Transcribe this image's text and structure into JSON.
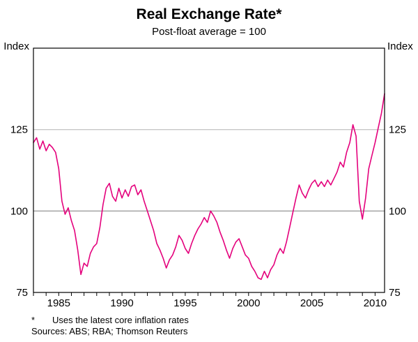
{
  "title": "Real Exchange Rate*",
  "subtitle": "Post-float average = 100",
  "axis": {
    "left_unit": "Index",
    "right_unit": "Index"
  },
  "footnotes": {
    "asterisk": "*",
    "note": "Uses the latest core inflation rates",
    "sources": "Sources: ABS; RBA; Thomson Reuters"
  },
  "chart_data": {
    "type": "line",
    "title": "Real Exchange Rate*",
    "subtitle": "Post-float average = 100",
    "ylabel": "Index",
    "ylim": [
      75,
      150
    ],
    "yticks": [
      75,
      100,
      125
    ],
    "gridlines": [
      {
        "value": 100,
        "color": "#7a7a7a"
      },
      {
        "value": 125,
        "color": "#b3b3b3"
      }
    ],
    "xlim": [
      1983,
      2010.75
    ],
    "xticks": [
      1985,
      1990,
      1995,
      2000,
      2005,
      2010
    ],
    "minor_tick_interval": 1,
    "line_color": "#e4007c",
    "frame_color": "#000000",
    "legend": "none",
    "series": [
      {
        "name": "Real exchange rate (post-float average = 100)",
        "x_start": 1983,
        "x_step": 0.25,
        "values": [
          121,
          122.5,
          119,
          121.5,
          118.5,
          120.5,
          119.5,
          118,
          113,
          103,
          99,
          101,
          97,
          94,
          88,
          80.5,
          84,
          83,
          87,
          89,
          90,
          95,
          102,
          107,
          108.5,
          104.5,
          103,
          107,
          104,
          106.5,
          104.5,
          107.5,
          108,
          105,
          106.5,
          103,
          100,
          97,
          94,
          90,
          88,
          85.5,
          82.5,
          85,
          86.5,
          89,
          92.5,
          91,
          88.5,
          87,
          90,
          92.5,
          94.5,
          96,
          98,
          96.5,
          100,
          98.5,
          96.5,
          93.5,
          91,
          88,
          85.5,
          88.5,
          90.5,
          91.5,
          89,
          86.5,
          85.5,
          83,
          81.5,
          79.5,
          79,
          81.5,
          79.5,
          82,
          83.5,
          86.5,
          88.5,
          87,
          90.5,
          95,
          99.5,
          104,
          108,
          105.5,
          104,
          106.5,
          108.5,
          109.5,
          107.5,
          109,
          107.5,
          109.5,
          108,
          110,
          112,
          115,
          113.5,
          118,
          121,
          126.5,
          123,
          103,
          97.5,
          104,
          113,
          117,
          121,
          125.5,
          130,
          136
        ]
      }
    ]
  }
}
